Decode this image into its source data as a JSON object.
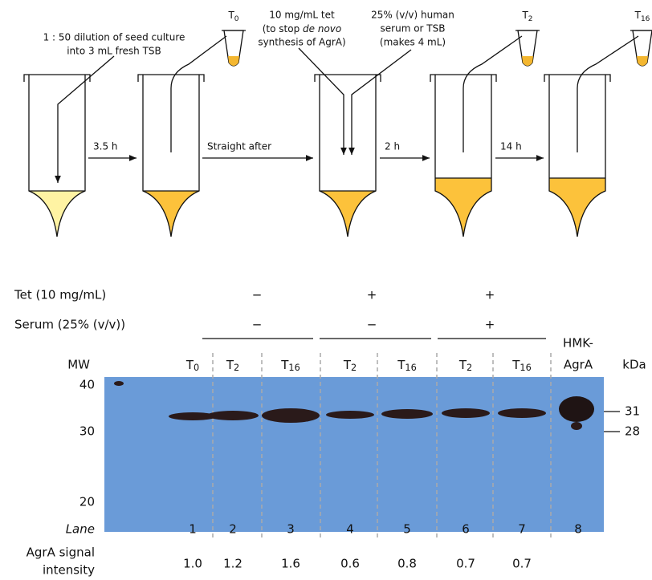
{
  "protocol": {
    "annotation_dilution": [
      "1 : 50 dilution of seed culture",
      "into 3 mL fresh TSB"
    ],
    "annotation_tet": [
      "10 mg/mL tet",
      "(to stop ",
      "de novo",
      "synthesis of AgrA)"
    ],
    "annotation_serum": [
      "25% (v/v) human",
      "serum or TSB",
      "(makes 4 mL)"
    ],
    "steps": [
      "3.5 h",
      "Straight after",
      "2 h",
      "14 h"
    ],
    "samples": [
      {
        "main": "T",
        "sub": "0"
      },
      {
        "main": "T",
        "sub": "2"
      },
      {
        "main": "T",
        "sub": "16"
      }
    ]
  },
  "conditions": [
    {
      "label": "Tet (10 mg/mL)",
      "values": [
        "−",
        "+",
        "+"
      ]
    },
    {
      "label": "Serum (25% (v/v))",
      "values": [
        "−",
        "−",
        "+"
      ]
    }
  ],
  "blot": {
    "mw_label": "MW",
    "mw_markers": [
      "40",
      "30",
      "20"
    ],
    "lane_headers": [
      {
        "main": "T",
        "sub": "0"
      },
      {
        "main": "T",
        "sub": "2"
      },
      {
        "main": "T",
        "sub": "16"
      },
      {
        "main": "T",
        "sub": "2"
      },
      {
        "main": "T",
        "sub": "16"
      },
      {
        "main": "T",
        "sub": "2"
      },
      {
        "main": "T",
        "sub": "16"
      }
    ],
    "control_header": [
      "HMK-",
      "AgrA"
    ],
    "unit": "kDa",
    "size_markers": [
      "31",
      "28"
    ],
    "lane_label": "Lane",
    "lane_numbers": [
      "1",
      "2",
      "3",
      "4",
      "5",
      "6",
      "7",
      "8"
    ],
    "signal_label": [
      "AgrA signal",
      "intensity"
    ],
    "signal_values": [
      "1.0",
      "1.2",
      "1.6",
      "0.6",
      "0.8",
      "0.7",
      "0.7"
    ]
  }
}
